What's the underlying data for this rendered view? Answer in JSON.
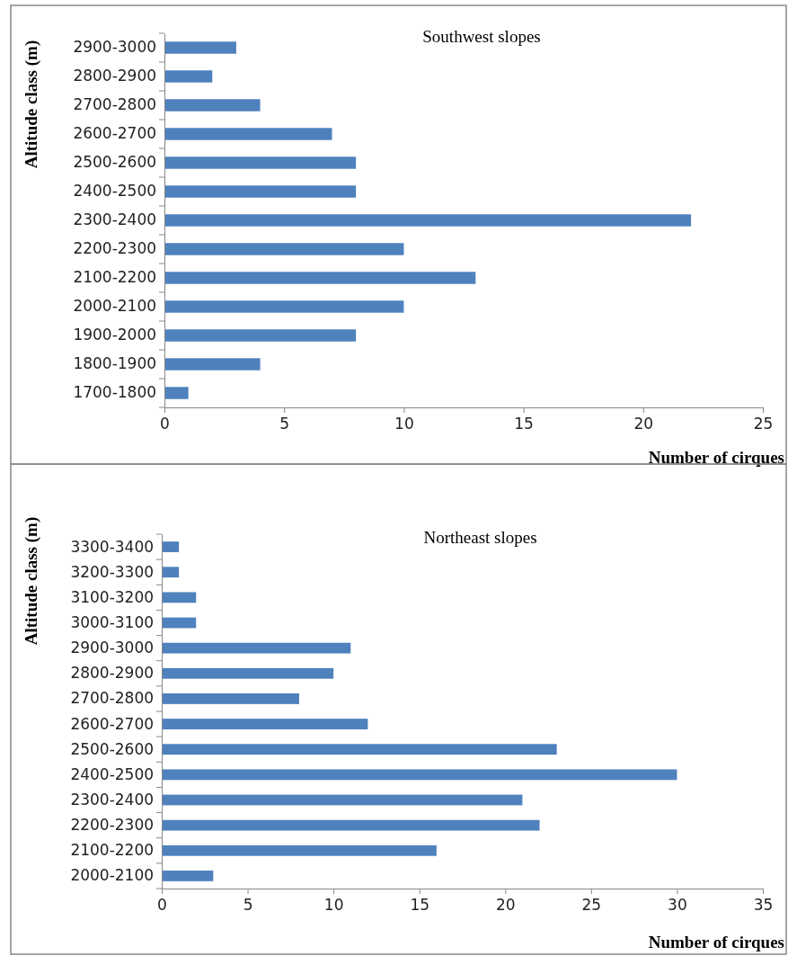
{
  "chart_data": [
    {
      "type": "bar",
      "orientation": "horizontal",
      "title": "Southwest slopes",
      "xlabel": "Number of cirques",
      "ylabel": "Altitude class (m)",
      "categories": [
        "2900-3000",
        "2800-2900",
        "2700-2800",
        "2600-2700",
        "2500-2600",
        "2400-2500",
        "2300-2400",
        "2200-2300",
        "2100-2200",
        "2000-2100",
        "1900-2000",
        "1800-1900",
        "1700-1800"
      ],
      "values": [
        3,
        2,
        4,
        7,
        8,
        8,
        22,
        10,
        13,
        10,
        8,
        4,
        1
      ],
      "color": "#4f81bd",
      "xlim": [
        0,
        25
      ],
      "xticks": [
        0,
        5,
        10,
        15,
        20,
        25
      ],
      "grid": false
    },
    {
      "type": "bar",
      "orientation": "horizontal",
      "title": "Northeast slopes",
      "xlabel": "Number of cirques",
      "ylabel": "Altitude class (m)",
      "categories": [
        "3300-3400",
        "3200-3300",
        "3100-3200",
        "3000-3100",
        "2900-3000",
        "2800-2900",
        "2700-2800",
        "2600-2700",
        "2500-2600",
        "2400-2500",
        "2300-2400",
        "2200-2300",
        "2100-2200",
        "2000-2100"
      ],
      "values": [
        1,
        1,
        2,
        2,
        11,
        10,
        8,
        12,
        23,
        30,
        21,
        22,
        16,
        3
      ],
      "color": "#4f81bd",
      "xlim": [
        0,
        35
      ],
      "xticks": [
        0,
        5,
        10,
        15,
        20,
        25,
        30,
        35
      ],
      "grid": false
    }
  ]
}
